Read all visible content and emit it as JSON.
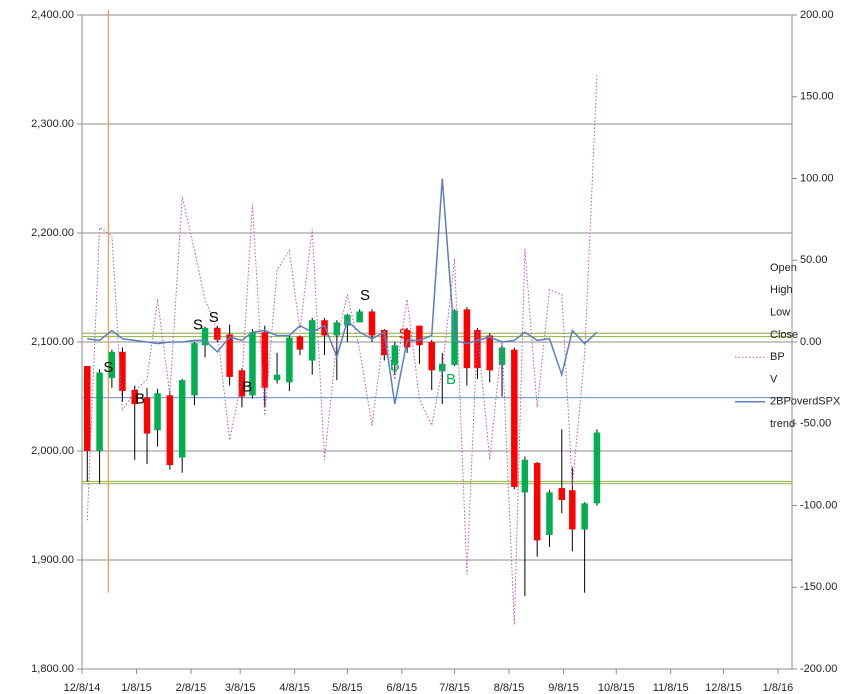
{
  "chart_data": {
    "type": "candlestick",
    "x": [
      3,
      10,
      17,
      23,
      30,
      37,
      43,
      50,
      57,
      64,
      70,
      77,
      84,
      91,
      97,
      104,
      111,
      118,
      124,
      131,
      138,
      145,
      151,
      158,
      165,
      172,
      178,
      185,
      192,
      199,
      205,
      212,
      219,
      225,
      232,
      239,
      246,
      252,
      259,
      266,
      273,
      279,
      286,
      293
    ],
    "xlim": [
      0,
      404
    ],
    "xticks": [
      {
        "value": 0,
        "label": "12/8/14"
      },
      {
        "value": 31,
        "label": "1/8/15"
      },
      {
        "value": 62,
        "label": "2/8/15"
      },
      {
        "value": 90,
        "label": "3/8/15"
      },
      {
        "value": 121,
        "label": "4/8/15"
      },
      {
        "value": 151,
        "label": "5/8/15"
      },
      {
        "value": 182,
        "label": "6/8/15"
      },
      {
        "value": 212,
        "label": "7/8/15"
      },
      {
        "value": 243,
        "label": "8/8/15"
      },
      {
        "value": 274,
        "label": "9/8/15"
      },
      {
        "value": 304,
        "label": "10/8/15"
      },
      {
        "value": 335,
        "label": "11/8/15"
      },
      {
        "value": 365,
        "label": "12/8/15"
      },
      {
        "value": 396,
        "label": "1/8/16"
      }
    ],
    "ylim": [
      1800,
      2400
    ],
    "yticks": [
      {
        "value": 1800,
        "label": "1,800.00"
      },
      {
        "value": 1900,
        "label": "1,900.00"
      },
      {
        "value": 2000,
        "label": "2,000.00"
      },
      {
        "value": 2100,
        "label": "2,100.00"
      },
      {
        "value": 2200,
        "label": "2,200.00"
      },
      {
        "value": 2300,
        "label": "2,300.00"
      },
      {
        "value": 2400,
        "label": "2,400.00"
      }
    ],
    "y2lim": [
      -200,
      200
    ],
    "y2ticks": [
      {
        "value": -200,
        "label": "-200.00"
      },
      {
        "value": -150,
        "label": "-150.00"
      },
      {
        "value": -100,
        "label": "-100.00"
      },
      {
        "value": -50,
        "label": "-50.00"
      },
      {
        "value": 0,
        "label": "0.00"
      },
      {
        "value": 50,
        "label": "50.00"
      },
      {
        "value": 100,
        "label": "100.00"
      },
      {
        "value": 150,
        "label": "150.00"
      },
      {
        "value": 200,
        "label": "200.00"
      }
    ],
    "grid": true,
    "up_color": "#00b050",
    "down_color": "#ff0000",
    "series": [
      {
        "name": "Open",
        "values": [
          2078,
          2000,
          2067,
          2091,
          2056,
          2049,
          2019,
          2051,
          1994,
          2051,
          2097,
          2113,
          2107,
          2074,
          2051,
          2109,
          2065,
          2063,
          2105,
          2083,
          2120,
          2106,
          2115,
          2118,
          2128,
          2111,
          2080,
          2111,
          2115,
          2100,
          2073,
          2079,
          2130,
          2111,
          2106,
          2079,
          2093,
          1962,
          1989,
          1923,
          1966,
          1964,
          1928,
          1952
        ]
      },
      {
        "name": "High",
        "values": [
          2078,
          2075,
          2093,
          2095,
          2060,
          2058,
          2057,
          2055,
          2066,
          2100,
          2114,
          2115,
          2116,
          2076,
          2112,
          2115,
          2090,
          2106,
          2106,
          2122,
          2122,
          2120,
          2126,
          2130,
          2130,
          2112,
          2100,
          2113,
          2115,
          2102,
          2090,
          2130,
          2132,
          2113,
          2108,
          2097,
          2095,
          1995,
          1990,
          1964,
          2020,
          1985,
          1953,
          2020
        ]
      },
      {
        "name": "Low",
        "values": [
          1972,
          1970,
          2058,
          2045,
          1992,
          1988,
          2004,
          1983,
          1980,
          2042,
          2086,
          2100,
          2060,
          2040,
          2048,
          2040,
          2062,
          2055,
          2088,
          2070,
          2088,
          2065,
          2100,
          2122,
          2100,
          2083,
          2070,
          2090,
          2080,
          2056,
          2043,
          2078,
          2060,
          2066,
          2063,
          2050,
          1965,
          1867,
          1903,
          1912,
          1943,
          1908,
          1870,
          1950
        ]
      },
      {
        "name": "Close",
        "values": [
          2000,
          2072,
          2091,
          2055,
          2043,
          2016,
          2053,
          1987,
          2065,
          2099,
          2113,
          2102,
          2068,
          2050,
          2109,
          2058,
          2070,
          2104,
          2093,
          2120,
          2106,
          2118,
          2125,
          2128,
          2106,
          2088,
          2097,
          2095,
          2097,
          2074,
          2080,
          2129,
          2076,
          2076,
          2074,
          2095,
          1967,
          1992,
          1918,
          1962,
          1955,
          1928,
          1952,
          2017
        ]
      },
      {
        "name": "BP",
        "axis": "y2",
        "color": "#c050c0",
        "dash": true,
        "values": [
          -109,
          70,
          65,
          -42,
          -30,
          -23,
          26,
          -32,
          89,
          56,
          26,
          7,
          -60,
          -23,
          84,
          -45,
          44,
          56,
          7,
          69,
          -72,
          1,
          29,
          -5,
          -51,
          7,
          -23,
          26,
          -35,
          -51,
          -17,
          51,
          -142,
          7,
          -72,
          1,
          -173,
          57,
          -40,
          32,
          29,
          -88,
          -8,
          163
        ]
      },
      {
        "name": "V"
      },
      {
        "name": "2BPoverdSPX",
        "axis": "y2",
        "color": "#5b7fbf",
        "values": [
          2,
          1,
          7,
          2,
          1,
          0,
          -1,
          0,
          0,
          1,
          1,
          -6,
          3,
          1,
          6,
          7,
          4,
          4,
          10,
          6,
          10,
          -9,
          13,
          6,
          2,
          6,
          -38,
          1,
          1,
          4,
          100,
          1,
          -1,
          1,
          3,
          0,
          1,
          6,
          1,
          2,
          -20,
          7,
          -1,
          6
        ]
      },
      {
        "name": "trend"
      }
    ],
    "hlines": [
      {
        "value": 2108,
        "color": "#9bbb59"
      },
      {
        "value": 2105,
        "color": "#9bbb59"
      },
      {
        "value": 1972,
        "color": "#9bbb59"
      },
      {
        "value": 1970,
        "color": "#9bbb59"
      },
      {
        "value": 2049,
        "color": "#7f9fcf"
      }
    ],
    "vlines": [
      {
        "x": 15,
        "color": "#f79646"
      }
    ],
    "annotations": [
      {
        "text": "S",
        "x": 15,
        "y": 2076,
        "color": "#000000"
      },
      {
        "text": "B",
        "x": 33,
        "y": 2047,
        "color": "#000000"
      },
      {
        "text": "S",
        "x": 66,
        "y": 2115,
        "color": "#000000"
      },
      {
        "text": "S",
        "x": 75,
        "y": 2122,
        "color": "#000000"
      },
      {
        "text": "B",
        "x": 94,
        "y": 2058,
        "color": "#000000"
      },
      {
        "text": "S",
        "x": 161,
        "y": 2142,
        "color": "#000000"
      },
      {
        "text": "B",
        "x": 178,
        "y": 2078,
        "color": "#00b050"
      },
      {
        "text": "S",
        "x": 183,
        "y": 2107,
        "color": "#ff0000"
      },
      {
        "text": "B",
        "x": 210,
        "y": 2065,
        "color": "#00b050"
      }
    ]
  }
}
